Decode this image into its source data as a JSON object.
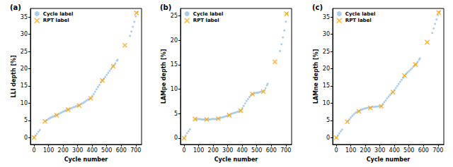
{
  "chart_data": [
    {
      "type": "scatter",
      "title": "(a)",
      "x_label": "Cycle number",
      "y_label": "LLI depth [%]",
      "xlim": [
        -25,
        740
      ],
      "xticks": [
        0,
        100,
        200,
        300,
        400,
        500,
        600,
        700
      ],
      "ylim": [
        -2,
        37.5
      ],
      "yticks": [
        0,
        5,
        10,
        15,
        20,
        25,
        30,
        35
      ],
      "grid": false,
      "legend": "upper left",
      "series": [
        {
          "name": "Cycle label",
          "color": "#9ec5e5",
          "marker": "circle",
          "x": [
            0,
            10,
            20,
            30,
            40,
            80,
            90,
            100,
            110,
            120,
            130,
            140,
            150,
            160,
            170,
            180,
            190,
            200,
            210,
            220,
            230,
            240,
            250,
            260,
            270,
            280,
            290,
            300,
            310,
            320,
            330,
            340,
            350,
            360,
            370,
            380,
            390,
            400,
            410,
            420,
            430,
            440,
            450,
            460,
            470,
            480,
            490,
            500,
            510,
            520,
            530,
            540,
            550,
            560,
            570,
            575,
            660,
            670,
            680,
            690,
            700,
            710
          ],
          "values": [
            0,
            0.6,
            1.1,
            1.7,
            2.2,
            4.8,
            5.1,
            5.4,
            5.7,
            5.9,
            6.1,
            6.3,
            6.5,
            6.6,
            6.8,
            7.1,
            7.3,
            7.5,
            7.7,
            7.9,
            8.1,
            8.2,
            8.4,
            8.6,
            8.8,
            8.9,
            9.1,
            9.2,
            9.4,
            9.6,
            9.9,
            10.1,
            10.4,
            10.7,
            11.0,
            11.2,
            11.5,
            12.0,
            12.6,
            13.3,
            14.0,
            14.7,
            15.3,
            16.0,
            16.6,
            17.1,
            17.6,
            18.2,
            18.8,
            19.4,
            19.9,
            20.5,
            21.0,
            21.6,
            22.3,
            22.6,
            29.5,
            30.8,
            32.2,
            33.6,
            35.2,
            36.4
          ]
        },
        {
          "name": "RPT label",
          "color": "#ffa500",
          "marker": "x",
          "x": [
            0,
            75,
            155,
            235,
            310,
            390,
            470,
            545,
            625,
            705
          ],
          "values": [
            0,
            4.7,
            6.5,
            8.1,
            9.3,
            11.4,
            16.6,
            20.7,
            26.8,
            36.2
          ]
        }
      ]
    },
    {
      "type": "scatter",
      "title": "(b)",
      "x_label": "Cycle number",
      "y_label": "LAMpe depth [%]",
      "xlim": [
        -25,
        740
      ],
      "xticks": [
        0,
        100,
        200,
        300,
        400,
        500,
        600,
        700
      ],
      "ylim": [
        -1.3,
        26.5
      ],
      "yticks": [
        0,
        5,
        10,
        15,
        20,
        25
      ],
      "grid": false,
      "legend": "upper left",
      "series": [
        {
          "name": "Cycle label",
          "color": "#9ec5e5",
          "marker": "circle",
          "x": [
            0,
            10,
            20,
            30,
            40,
            80,
            90,
            100,
            110,
            120,
            130,
            140,
            150,
            160,
            170,
            180,
            190,
            200,
            210,
            220,
            230,
            240,
            250,
            260,
            270,
            280,
            290,
            300,
            310,
            320,
            330,
            340,
            350,
            360,
            370,
            380,
            390,
            400,
            410,
            420,
            430,
            440,
            450,
            460,
            470,
            480,
            490,
            500,
            510,
            520,
            530,
            540,
            550,
            560,
            570,
            575,
            660,
            670,
            680,
            690,
            700,
            710
          ],
          "values": [
            0,
            0.5,
            1.0,
            1.4,
            1.8,
            3.9,
            3.9,
            3.9,
            3.9,
            3.8,
            3.8,
            3.8,
            3.8,
            3.8,
            3.8,
            3.8,
            3.9,
            3.9,
            3.9,
            3.9,
            4.0,
            4.0,
            4.1,
            4.2,
            4.3,
            4.4,
            4.5,
            4.6,
            4.7,
            4.8,
            5.0,
            5.1,
            5.2,
            5.3,
            5.4,
            5.5,
            5.7,
            6.1,
            6.6,
            7.1,
            7.6,
            8.0,
            8.4,
            8.8,
            9.0,
            9.1,
            9.2,
            9.3,
            9.3,
            9.4,
            9.5,
            9.5,
            9.7,
            10.2,
            10.8,
            11.1,
            17.8,
            19.2,
            20.6,
            22.0,
            23.8,
            25.5
          ]
        },
        {
          "name": "RPT label",
          "color": "#ffa500",
          "marker": "x",
          "x": [
            0,
            75,
            155,
            235,
            310,
            390,
            470,
            545,
            625,
            705
          ],
          "values": [
            0,
            3.9,
            3.8,
            4.0,
            4.7,
            5.6,
            9.0,
            9.5,
            15.6,
            25.4
          ]
        }
      ]
    },
    {
      "type": "scatter",
      "title": "(c)",
      "x_label": "Cycle number",
      "y_label": "LAMne depth [%]",
      "xlim": [
        -25,
        740
      ],
      "xticks": [
        0,
        100,
        200,
        300,
        400,
        500,
        600,
        700
      ],
      "ylim": [
        -2,
        37.5
      ],
      "yticks": [
        0,
        5,
        10,
        15,
        20,
        25,
        30,
        35
      ],
      "grid": false,
      "legend": "upper left",
      "series": [
        {
          "name": "Cycle label",
          "color": "#9ec5e5",
          "marker": "circle",
          "x": [
            0,
            10,
            20,
            30,
            40,
            80,
            90,
            100,
            110,
            120,
            130,
            140,
            150,
            160,
            170,
            180,
            190,
            200,
            210,
            220,
            230,
            240,
            250,
            260,
            270,
            280,
            290,
            300,
            310,
            320,
            330,
            340,
            350,
            360,
            370,
            380,
            390,
            400,
            410,
            420,
            430,
            440,
            450,
            460,
            470,
            480,
            490,
            500,
            510,
            520,
            530,
            540,
            550,
            560,
            570,
            575,
            660,
            670,
            680,
            690,
            700,
            710
          ],
          "values": [
            0,
            0.6,
            1.2,
            1.8,
            2.3,
            4.8,
            5.3,
            5.8,
            6.3,
            6.7,
            7.1,
            7.4,
            7.6,
            7.8,
            8.0,
            8.2,
            8.4,
            8.5,
            8.6,
            8.7,
            8.7,
            8.8,
            8.9,
            8.9,
            9.0,
            9.0,
            9.1,
            9.1,
            9.2,
            9.7,
            10.3,
            10.8,
            11.4,
            11.9,
            12.4,
            12.9,
            13.3,
            13.8,
            14.4,
            15.0,
            15.6,
            16.2,
            16.8,
            17.4,
            18.0,
            18.5,
            18.9,
            19.3,
            19.7,
            20.1,
            20.6,
            21.0,
            21.4,
            22.0,
            22.6,
            23.0,
            30.4,
            31.7,
            33.0,
            34.3,
            35.6,
            36.6
          ]
        },
        {
          "name": "RPT label",
          "color": "#ffa500",
          "marker": "x",
          "x": [
            0,
            75,
            155,
            235,
            310,
            390,
            470,
            545,
            625,
            705
          ],
          "values": [
            0,
            4.6,
            7.6,
            8.6,
            9.1,
            13.2,
            18.0,
            21.2,
            27.7,
            36.3
          ]
        }
      ]
    }
  ]
}
